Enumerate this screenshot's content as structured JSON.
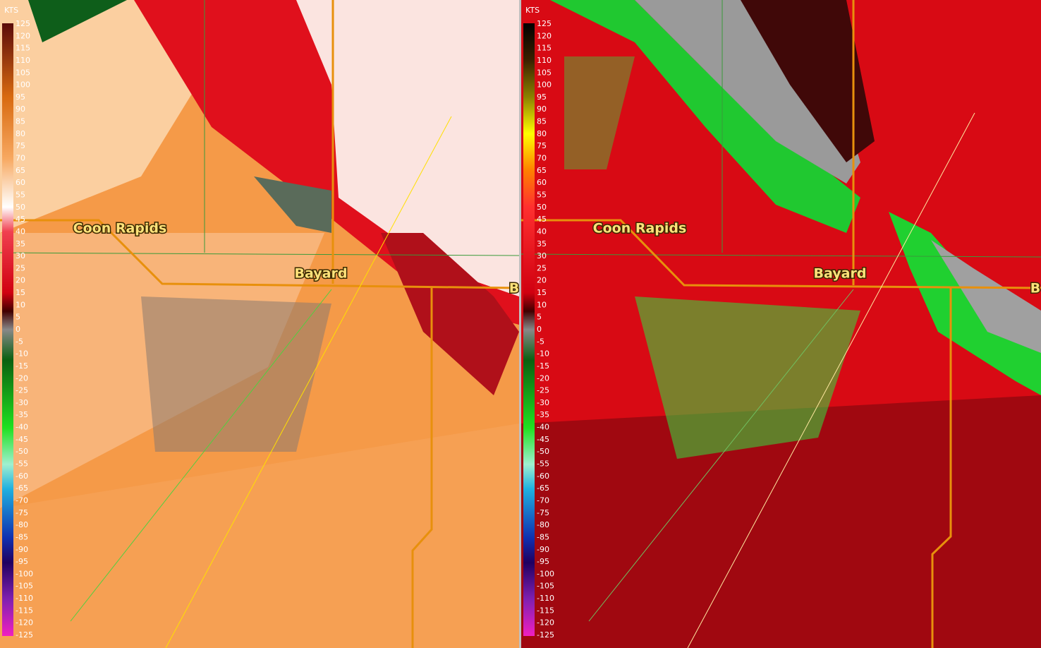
{
  "panels": [
    {
      "unit": "KTS",
      "scale": [
        "125",
        "120",
        "115",
        "110",
        "105",
        "100",
        "95",
        "90",
        "85",
        "80",
        "75",
        "70",
        "65",
        "60",
        "55",
        "50",
        "45",
        "40",
        "35",
        "30",
        "25",
        "20",
        "15",
        "10",
        "5",
        "0",
        "-5",
        "-10",
        "-15",
        "-20",
        "-25",
        "-30",
        "-35",
        "-40",
        "-45",
        "-50",
        "-55",
        "-60",
        "-65",
        "-70",
        "-75",
        "-80",
        "-85",
        "-90",
        "-95",
        "-100",
        "-105",
        "-110",
        "-115",
        "-120",
        "-125"
      ],
      "places": [
        "Coon Rapids",
        "Bayard",
        "B"
      ]
    },
    {
      "unit": "KTS",
      "scale": [
        "125",
        "120",
        "115",
        "110",
        "105",
        "100",
        "95",
        "90",
        "85",
        "80",
        "75",
        "70",
        "65",
        "60",
        "55",
        "50",
        "45",
        "40",
        "35",
        "30",
        "25",
        "20",
        "15",
        "10",
        "5",
        "0",
        "-5",
        "-10",
        "-15",
        "-20",
        "-25",
        "-30",
        "-35",
        "-40",
        "-45",
        "-50",
        "-55",
        "-60",
        "-65",
        "-70",
        "-75",
        "-80",
        "-85",
        "-90",
        "-95",
        "-100",
        "-105",
        "-110",
        "-115",
        "-120",
        "-125"
      ],
      "places": [
        "Coon Rapids",
        "Bayard",
        "B"
      ]
    }
  ]
}
